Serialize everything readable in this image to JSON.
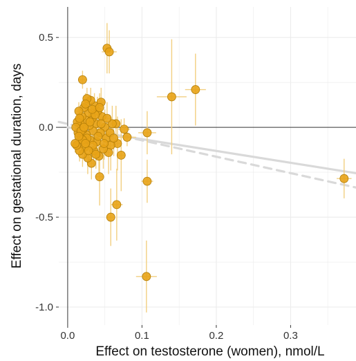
{
  "chart_data": {
    "type": "scatter",
    "xlabel": "Effect on testosterone (women), nmol/L",
    "ylabel": "Effect on gestational duration, days",
    "xlim": [
      -0.012,
      0.388
    ],
    "ylim": [
      -1.1,
      0.67
    ],
    "x_ticks": [
      0.0,
      0.1,
      0.2,
      0.3
    ],
    "x_tick_labels": [
      "0.0",
      "0.1",
      "0.2",
      "0.3"
    ],
    "y_ticks": [
      0.5,
      0.0,
      -0.5,
      -1.0
    ],
    "y_tick_labels": [
      "0.5",
      "0.0",
      "-0.5",
      "-1.0"
    ],
    "grid": true,
    "reference_lines": {
      "x": 0,
      "y": 0
    },
    "colors": {
      "point_fill": "#E8A317",
      "point_stroke": "#B27D08",
      "error_bar": "#F2CF80",
      "fit_line": "#D9D9D9",
      "grid": "#EBEBEB",
      "axis": "#333333"
    },
    "fit_lines": [
      {
        "style": "solid",
        "x": [
          0.0,
          0.388
        ],
        "y": [
          0.0,
          -0.255
        ]
      },
      {
        "style": "dashed",
        "x": [
          -0.012,
          0.388
        ],
        "y": [
          0.03,
          -0.335
        ]
      }
    ],
    "points": [
      {
        "x": 0.372,
        "y": -0.285,
        "xerr": 0.01,
        "yerr": 0.11
      },
      {
        "x": 0.172,
        "y": 0.21,
        "xerr": 0.014,
        "yerr": 0.2
      },
      {
        "x": 0.14,
        "y": 0.17,
        "xerr": 0.02,
        "yerr": 0.32
      },
      {
        "x": 0.107,
        "y": -0.03,
        "xerr": 0.012,
        "yerr": 0.12
      },
      {
        "x": 0.107,
        "y": -0.3,
        "xerr": 0.008,
        "yerr": 0.12
      },
      {
        "x": 0.106,
        "y": -0.83,
        "xerr": 0.014,
        "yerr": 0.2
      },
      {
        "x": 0.066,
        "y": -0.43,
        "xerr": 0.008,
        "yerr": 0.2
      },
      {
        "x": 0.058,
        "y": -0.5,
        "xerr": 0.006,
        "yerr": 0.16
      },
      {
        "x": 0.053,
        "y": 0.44,
        "xerr": 0.006,
        "yerr": 0.14
      },
      {
        "x": 0.056,
        "y": 0.42,
        "xerr": 0.01,
        "yerr": 0.12
      },
      {
        "x": 0.02,
        "y": 0.265,
        "xerr": 0.006,
        "yerr": 0.05
      },
      {
        "x": 0.043,
        "y": -0.275,
        "xerr": 0.006,
        "yerr": 0.16
      },
      {
        "x": 0.08,
        "y": -0.055,
        "xerr": 0.012,
        "yerr": 0.05
      },
      {
        "x": 0.076,
        "y": -0.01,
        "xerr": 0.008,
        "yerr": 0.06
      },
      {
        "x": 0.072,
        "y": -0.155,
        "xerr": 0.006,
        "yerr": 0.2
      },
      {
        "x": 0.067,
        "y": -0.09,
        "xerr": 0.006,
        "yerr": 0.15
      },
      {
        "x": 0.065,
        "y": 0.02,
        "xerr": 0.006,
        "yerr": 0.1
      },
      {
        "x": 0.06,
        "y": 0.02,
        "xerr": 0.008,
        "yerr": 0.1
      },
      {
        "x": 0.058,
        "y": -0.1,
        "xerr": 0.006,
        "yerr": 0.14
      },
      {
        "x": 0.055,
        "y": -0.14,
        "xerr": 0.006,
        "yerr": 0.12
      },
      {
        "x": 0.052,
        "y": -0.06,
        "xerr": 0.005,
        "yerr": 0.1
      },
      {
        "x": 0.05,
        "y": 0.0,
        "xerr": 0.006,
        "yerr": 0.1
      },
      {
        "x": 0.048,
        "y": -0.12,
        "xerr": 0.005,
        "yerr": 0.11
      },
      {
        "x": 0.046,
        "y": 0.06,
        "xerr": 0.005,
        "yerr": 0.09
      },
      {
        "x": 0.045,
        "y": 0.14,
        "xerr": 0.006,
        "yerr": 0.08
      },
      {
        "x": 0.044,
        "y": -0.03,
        "xerr": 0.004,
        "yerr": 0.1
      },
      {
        "x": 0.042,
        "y": -0.16,
        "xerr": 0.005,
        "yerr": 0.1
      },
      {
        "x": 0.04,
        "y": 0.09,
        "xerr": 0.005,
        "yerr": 0.08
      },
      {
        "x": 0.039,
        "y": -0.08,
        "xerr": 0.004,
        "yerr": 0.09
      },
      {
        "x": 0.038,
        "y": 0.02,
        "xerr": 0.005,
        "yerr": 0.09
      },
      {
        "x": 0.036,
        "y": 0.12,
        "xerr": 0.005,
        "yerr": 0.07
      },
      {
        "x": 0.035,
        "y": -0.13,
        "xerr": 0.005,
        "yerr": 0.09
      },
      {
        "x": 0.034,
        "y": -0.02,
        "xerr": 0.004,
        "yerr": 0.08
      },
      {
        "x": 0.033,
        "y": 0.05,
        "xerr": 0.004,
        "yerr": 0.07
      },
      {
        "x": 0.032,
        "y": -0.2,
        "xerr": 0.005,
        "yerr": 0.09
      },
      {
        "x": 0.031,
        "y": 0.15,
        "xerr": 0.005,
        "yerr": 0.07
      },
      {
        "x": 0.03,
        "y": -0.07,
        "xerr": 0.004,
        "yerr": 0.08
      },
      {
        "x": 0.029,
        "y": 0.01,
        "xerr": 0.004,
        "yerr": 0.07
      },
      {
        "x": 0.028,
        "y": 0.08,
        "xerr": 0.004,
        "yerr": 0.07
      },
      {
        "x": 0.027,
        "y": -0.17,
        "xerr": 0.004,
        "yerr": 0.09
      },
      {
        "x": 0.026,
        "y": 0.16,
        "xerr": 0.004,
        "yerr": 0.06
      },
      {
        "x": 0.025,
        "y": -0.04,
        "xerr": 0.004,
        "yerr": 0.07
      },
      {
        "x": 0.024,
        "y": 0.04,
        "xerr": 0.004,
        "yerr": 0.06
      },
      {
        "x": 0.023,
        "y": -0.11,
        "xerr": 0.004,
        "yerr": 0.07
      },
      {
        "x": 0.022,
        "y": 0.11,
        "xerr": 0.004,
        "yerr": 0.06
      },
      {
        "x": 0.021,
        "y": -0.01,
        "xerr": 0.003,
        "yerr": 0.06
      },
      {
        "x": 0.02,
        "y": -0.15,
        "xerr": 0.004,
        "yerr": 0.07
      },
      {
        "x": 0.019,
        "y": 0.06,
        "xerr": 0.003,
        "yerr": 0.05
      },
      {
        "x": 0.018,
        "y": -0.06,
        "xerr": 0.003,
        "yerr": 0.06
      },
      {
        "x": 0.017,
        "y": 0.02,
        "xerr": 0.003,
        "yerr": 0.05
      },
      {
        "x": 0.016,
        "y": -0.13,
        "xerr": 0.003,
        "yerr": 0.06
      },
      {
        "x": 0.015,
        "y": 0.09,
        "xerr": 0.003,
        "yerr": 0.05
      },
      {
        "x": 0.014,
        "y": -0.03,
        "xerr": 0.003,
        "yerr": 0.05
      },
      {
        "x": 0.013,
        "y": 0.03,
        "xerr": 0.003,
        "yerr": 0.05
      },
      {
        "x": 0.012,
        "y": -0.1,
        "xerr": 0.003,
        "yerr": 0.05
      },
      {
        "x": 0.011,
        "y": 0.0,
        "xerr": 0.003,
        "yerr": 0.04
      },
      {
        "x": 0.01,
        "y": -0.09,
        "xerr": 0.003,
        "yerr": 0.05
      },
      {
        "x": 0.018,
        "y": -0.02,
        "xerr": 0.003,
        "yerr": 0.05
      },
      {
        "x": 0.022,
        "y": 0.0,
        "xerr": 0.003,
        "yerr": 0.05
      },
      {
        "x": 0.026,
        "y": -0.06,
        "xerr": 0.004,
        "yerr": 0.06
      },
      {
        "x": 0.03,
        "y": 0.03,
        "xerr": 0.004,
        "yerr": 0.06
      },
      {
        "x": 0.034,
        "y": -0.1,
        "xerr": 0.004,
        "yerr": 0.07
      },
      {
        "x": 0.037,
        "y": 0.07,
        "xerr": 0.004,
        "yerr": 0.07
      },
      {
        "x": 0.041,
        "y": -0.05,
        "xerr": 0.005,
        "yerr": 0.08
      },
      {
        "x": 0.045,
        "y": 0.02,
        "xerr": 0.005,
        "yerr": 0.08
      },
      {
        "x": 0.049,
        "y": -0.09,
        "xerr": 0.005,
        "yerr": 0.09
      },
      {
        "x": 0.053,
        "y": 0.05,
        "xerr": 0.006,
        "yerr": 0.09
      },
      {
        "x": 0.057,
        "y": -0.03,
        "xerr": 0.006,
        "yerr": 0.1
      },
      {
        "x": 0.062,
        "y": -0.06,
        "xerr": 0.006,
        "yerr": 0.1
      },
      {
        "x": 0.024,
        "y": 0.13,
        "xerr": 0.004,
        "yerr": 0.06
      },
      {
        "x": 0.028,
        "y": -0.13,
        "xerr": 0.004,
        "yerr": 0.07
      },
      {
        "x": 0.033,
        "y": 0.1,
        "xerr": 0.004,
        "yerr": 0.07
      },
      {
        "x": 0.038,
        "y": -0.15,
        "xerr": 0.005,
        "yerr": 0.08
      },
      {
        "x": 0.043,
        "y": 0.11,
        "xerr": 0.005,
        "yerr": 0.08
      },
      {
        "x": 0.016,
        "y": 0.05,
        "xerr": 0.003,
        "yerr": 0.05
      },
      {
        "x": 0.02,
        "y": -0.07,
        "xerr": 0.003,
        "yerr": 0.05
      },
      {
        "x": 0.015,
        "y": -0.05,
        "xerr": 0.003,
        "yerr": 0.05
      },
      {
        "x": 0.024,
        "y": -0.09,
        "xerr": 0.004,
        "yerr": 0.06
      }
    ]
  }
}
